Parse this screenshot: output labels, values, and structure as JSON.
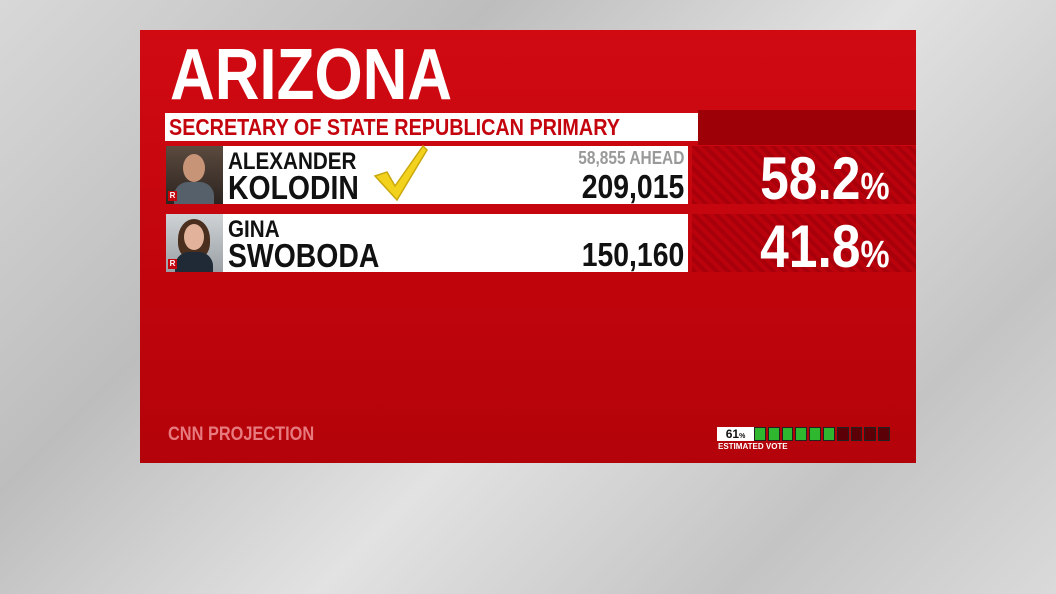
{
  "header": {
    "title": "ARIZONA",
    "subtitle": "SECRETARY OF STATE REPUBLICAN PRIMARY"
  },
  "candidates": [
    {
      "first_name": "ALEXANDER",
      "last_name": "KOLODIN",
      "party": "R",
      "lead": "58,855 AHEAD",
      "votes": "209,015",
      "percent": "58.2",
      "percent_sign": "%",
      "winner": true
    },
    {
      "first_name": "GINA",
      "last_name": "SWOBODA",
      "party": "R",
      "votes": "150,160",
      "percent": "41.8",
      "percent_sign": "%",
      "winner": false
    }
  ],
  "footer": {
    "label": "CNN PROJECTION",
    "estimated_vote": 61,
    "estimated_vote_sign": "%",
    "estimated_vote_label": "ESTIMATED VOTE"
  }
}
